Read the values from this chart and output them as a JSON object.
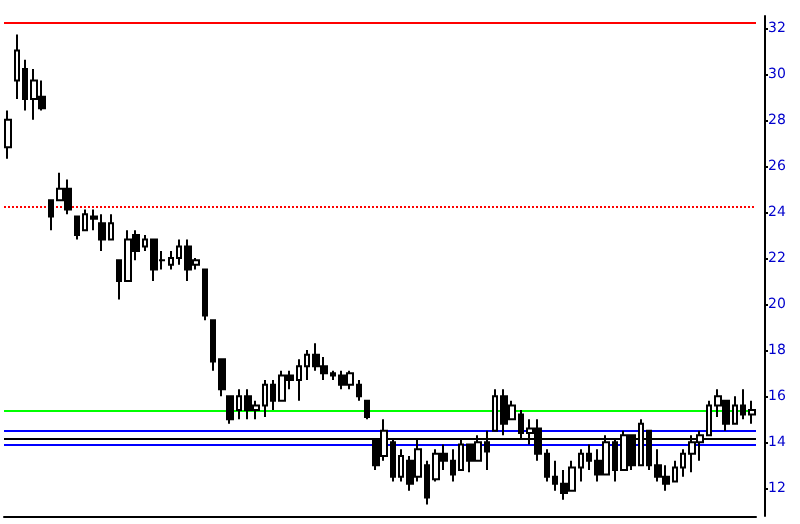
{
  "chart_data": {
    "type": "candlestick",
    "color": "#000000",
    "categories": [
      null,
      null,
      null,
      null,
      null,
      null,
      null,
      null,
      null,
      null,
      null,
      null,
      null,
      null,
      null,
      null,
      null,
      null,
      null,
      null,
      null,
      null,
      null,
      null,
      null,
      null,
      null,
      null,
      null,
      null,
      null,
      null,
      null,
      null,
      null,
      null,
      null,
      null,
      null,
      null,
      null,
      null,
      null,
      null,
      null,
      null,
      null,
      null,
      null,
      null,
      null,
      null,
      null,
      null,
      null,
      null,
      null,
      null,
      null,
      null,
      null,
      null,
      null,
      null,
      null,
      null,
      null,
      null,
      null,
      null,
      null,
      null,
      null,
      null,
      null,
      null,
      null,
      null,
      null,
      null,
      null,
      null,
      null,
      null,
      null,
      null,
      null,
      null
    ],
    "ohlc": [
      [
        26.8,
        28.4,
        26.3,
        28.0
      ],
      [
        29.7,
        31.7,
        28.9,
        31.0
      ],
      [
        30.2,
        30.6,
        28.4,
        28.9
      ],
      [
        28.9,
        30.2,
        28.0,
        29.7
      ],
      [
        29.0,
        29.7,
        28.4,
        28.5
      ],
      [
        24.5,
        24.5,
        23.2,
        23.8
      ],
      [
        24.5,
        25.7,
        24.5,
        25.0
      ],
      [
        25.0,
        25.4,
        23.9,
        24.1
      ],
      [
        23.8,
        23.8,
        22.8,
        23.0
      ],
      [
        23.2,
        24.1,
        23.2,
        23.9
      ],
      [
        23.8,
        24.1,
        23.2,
        23.7
      ],
      [
        23.5,
        23.9,
        22.3,
        22.8
      ],
      [
        22.8,
        23.9,
        22.8,
        23.5
      ],
      [
        21.9,
        21.9,
        20.2,
        21.0
      ],
      [
        21.0,
        23.2,
        21.0,
        22.8
      ],
      [
        23.0,
        23.2,
        21.9,
        22.3
      ],
      [
        22.5,
        23.0,
        22.3,
        22.8
      ],
      [
        22.8,
        22.8,
        21.0,
        21.5
      ],
      [
        21.9,
        22.3,
        21.5,
        21.9
      ],
      [
        21.7,
        22.3,
        21.5,
        22.0
      ],
      [
        22.0,
        22.8,
        21.7,
        22.5
      ],
      [
        22.5,
        22.8,
        21.0,
        21.5
      ],
      [
        21.7,
        22.0,
        21.5,
        21.9
      ],
      [
        21.5,
        21.5,
        19.3,
        19.5
      ],
      [
        19.3,
        19.3,
        17.1,
        17.5
      ],
      [
        17.6,
        17.6,
        16.0,
        16.3
      ],
      [
        16.0,
        16.0,
        14.8,
        15.0
      ],
      [
        15.4,
        16.3,
        15.0,
        16.0
      ],
      [
        16.0,
        16.3,
        15.0,
        15.4
      ],
      [
        15.4,
        15.8,
        15.0,
        15.6
      ],
      [
        15.6,
        16.7,
        15.1,
        16.5
      ],
      [
        16.5,
        16.7,
        15.4,
        15.8
      ],
      [
        15.8,
        17.1,
        15.8,
        16.9
      ],
      [
        16.9,
        17.1,
        16.3,
        16.7
      ],
      [
        16.7,
        17.6,
        15.8,
        17.3
      ],
      [
        17.3,
        18.0,
        16.7,
        17.8
      ],
      [
        17.8,
        18.3,
        17.1,
        17.3
      ],
      [
        17.3,
        17.7,
        16.7,
        17.0
      ],
      [
        17.0,
        17.1,
        16.7,
        16.9
      ],
      [
        16.9,
        17.1,
        16.3,
        16.5
      ],
      [
        16.5,
        17.1,
        16.3,
        17.0
      ],
      [
        16.5,
        16.7,
        15.8,
        16.0
      ],
      [
        15.8,
        15.8,
        15.0,
        15.1
      ],
      [
        14.1,
        14.1,
        12.8,
        13.0
      ],
      [
        13.4,
        15.0,
        13.2,
        14.5
      ],
      [
        14.0,
        14.1,
        12.3,
        12.5
      ],
      [
        12.5,
        13.7,
        12.3,
        13.4
      ],
      [
        13.2,
        13.4,
        11.9,
        12.2
      ],
      [
        12.5,
        14.1,
        12.3,
        13.7
      ],
      [
        13.0,
        13.2,
        11.3,
        11.6
      ],
      [
        12.4,
        13.7,
        12.3,
        13.5
      ],
      [
        13.5,
        13.9,
        12.8,
        13.2
      ],
      [
        13.2,
        13.7,
        12.3,
        12.6
      ],
      [
        12.8,
        14.1,
        12.8,
        13.9
      ],
      [
        13.9,
        13.9,
        12.7,
        13.2
      ],
      [
        13.2,
        14.3,
        13.2,
        14.0
      ],
      [
        14.0,
        14.5,
        12.8,
        13.6
      ],
      [
        14.5,
        16.3,
        14.5,
        16.0
      ],
      [
        16.0,
        16.3,
        14.3,
        14.8
      ],
      [
        15.0,
        15.8,
        15.0,
        15.6
      ],
      [
        15.2,
        15.4,
        14.1,
        14.4
      ],
      [
        14.4,
        15.0,
        13.9,
        14.6
      ],
      [
        14.6,
        15.0,
        13.2,
        13.5
      ],
      [
        13.5,
        13.7,
        12.3,
        12.5
      ],
      [
        12.5,
        13.2,
        11.9,
        12.2
      ],
      [
        12.2,
        12.8,
        11.5,
        11.8
      ],
      [
        11.9,
        13.2,
        11.9,
        12.9
      ],
      [
        12.9,
        13.7,
        12.3,
        13.5
      ],
      [
        13.5,
        13.9,
        12.8,
        13.2
      ],
      [
        13.2,
        13.7,
        12.3,
        12.6
      ],
      [
        12.6,
        14.3,
        12.6,
        14.0
      ],
      [
        14.0,
        14.1,
        12.3,
        12.8
      ],
      [
        12.8,
        14.5,
        12.8,
        14.3
      ],
      [
        14.3,
        14.3,
        12.8,
        13.0
      ],
      [
        13.0,
        15.0,
        13.0,
        14.8
      ],
      [
        14.5,
        14.5,
        12.8,
        13.0
      ],
      [
        13.0,
        13.7,
        12.3,
        12.5
      ],
      [
        12.5,
        13.0,
        11.9,
        12.2
      ],
      [
        12.3,
        13.2,
        12.3,
        12.9
      ],
      [
        12.9,
        13.7,
        12.5,
        13.5
      ],
      [
        13.5,
        14.3,
        12.7,
        14.0
      ],
      [
        14.0,
        14.5,
        13.2,
        14.3
      ],
      [
        14.3,
        15.8,
        14.3,
        15.6
      ],
      [
        15.6,
        16.3,
        15.1,
        16.0
      ],
      [
        15.8,
        15.8,
        14.5,
        14.8
      ],
      [
        14.8,
        16.0,
        14.8,
        15.6
      ],
      [
        15.6,
        16.3,
        15.0,
        15.2
      ],
      [
        15.2,
        15.8,
        14.8,
        15.4
      ]
    ],
    "ylim": [
      10.8,
      32.5
    ],
    "yticks": [
      12,
      14,
      16,
      18,
      20,
      22,
      24,
      26,
      28,
      30,
      32
    ],
    "tick_labels": "y",
    "grid": false,
    "ref_lines": [
      {
        "axis": "y",
        "value": 32.2,
        "color": "#ff0000",
        "line_style": "solid"
      },
      {
        "axis": "y",
        "value": 24.2,
        "color": "#ff0000",
        "line_style": "dotted"
      },
      {
        "axis": "y",
        "value": 15.4,
        "color": "#00ff00",
        "line_style": "solid"
      },
      {
        "axis": "y",
        "value": 14.5,
        "color": "#0000ff",
        "line_style": "solid"
      },
      {
        "axis": "y",
        "value": 14.2,
        "color": "#000000",
        "line_style": "solid"
      },
      {
        "axis": "y",
        "value": 13.9,
        "color": "#0000ff",
        "line_style": "solid"
      }
    ]
  }
}
